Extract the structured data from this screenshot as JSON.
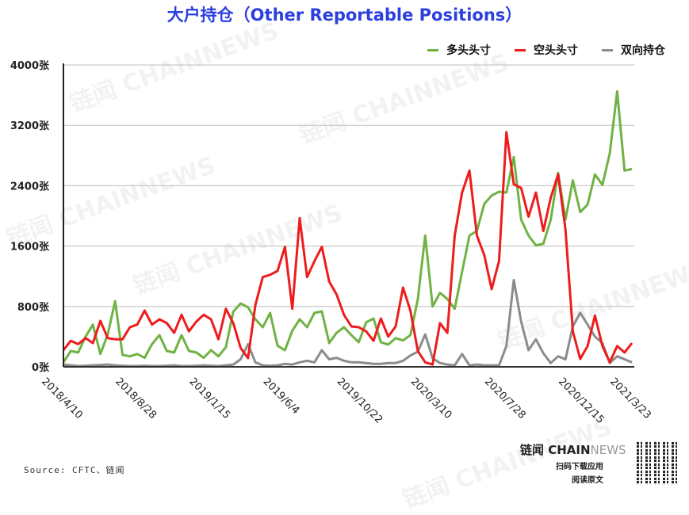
{
  "chart_data": {
    "type": "line",
    "title": "大户持仓（Other Reportable Positions）",
    "xlabel": "",
    "ylabel": "",
    "x_range": [
      "2018/4/10",
      "2021/3/23"
    ],
    "x_tick_labels": [
      "2018/4/10",
      "2018/8/28",
      "2019/1/15",
      "2019/6/4",
      "2019/10/22",
      "2020/3/10",
      "2020/7/28",
      "2020/12/15",
      "2021/3/23"
    ],
    "y_tick_labels": [
      "0张",
      "800张",
      "1600张",
      "2400张",
      "3200张",
      "4000张"
    ],
    "y_ticks": [
      0,
      800,
      1600,
      2400,
      3200,
      4000
    ],
    "ylim": [
      0,
      4000
    ],
    "grid": "horizontal",
    "legend_position": "top-right",
    "series": [
      {
        "name": "多头头寸",
        "color": "#70b244",
        "values": [
          60,
          210,
          190,
          400,
          560,
          170,
          430,
          870,
          160,
          140,
          170,
          120,
          300,
          420,
          210,
          190,
          420,
          210,
          190,
          120,
          220,
          140,
          260,
          730,
          840,
          790,
          630,
          525,
          715,
          280,
          220,
          480,
          630,
          525,
          715,
          735,
          315,
          450,
          525,
          420,
          325,
          590,
          640,
          325,
          295,
          380,
          350,
          420,
          900,
          1740,
          800,
          980,
          900,
          770,
          1260,
          1740,
          1800,
          2160,
          2270,
          2320,
          2310,
          2780,
          1950,
          1740,
          1610,
          1630,
          1950,
          2570,
          1950,
          2470,
          2050,
          2150,
          2550,
          2410,
          2830,
          3650,
          2600,
          2620
        ]
      },
      {
        "name": "空头头寸",
        "color": "#ee1c1c",
        "values": [
          220,
          345,
          300,
          380,
          315,
          610,
          380,
          365,
          365,
          525,
          560,
          745,
          560,
          630,
          580,
          450,
          690,
          470,
          600,
          690,
          630,
          365,
          770,
          580,
          250,
          115,
          820,
          1190,
          1220,
          1270,
          1590,
          770,
          1970,
          1190,
          1400,
          1590,
          1130,
          960,
          690,
          535,
          525,
          470,
          345,
          640,
          400,
          535,
          1050,
          745,
          210,
          60,
          30,
          580,
          450,
          1740,
          2310,
          2600,
          1740,
          1480,
          1030,
          1400,
          3110,
          2420,
          2370,
          1990,
          2310,
          1800,
          2240,
          2550,
          1820,
          470,
          105,
          275,
          680,
          275,
          60,
          275,
          190,
          315
        ]
      },
      {
        "name": "双向持仓",
        "color": "#8c8c8c",
        "values": [
          30,
          20,
          10,
          15,
          20,
          25,
          30,
          20,
          15,
          10,
          10,
          15,
          10,
          10,
          15,
          20,
          10,
          10,
          15,
          20,
          15,
          10,
          20,
          30,
          100,
          300,
          60,
          20,
          15,
          20,
          40,
          30,
          60,
          80,
          60,
          220,
          100,
          120,
          80,
          60,
          60,
          50,
          40,
          40,
          50,
          50,
          80,
          150,
          200,
          430,
          115,
          50,
          30,
          20,
          170,
          20,
          30,
          20,
          20,
          20,
          275,
          1150,
          600,
          220,
          365,
          180,
          50,
          140,
          100,
          535,
          715,
          560,
          400,
          315,
          50,
          140,
          100,
          60
        ]
      }
    ]
  },
  "footer": {
    "source": "Source: CFTC、链闻",
    "brand_main": "链闻 CHAIN",
    "brand_news": "NEWS",
    "brand_line1": "扫码下载应用",
    "brand_line2": "阅读原文"
  },
  "watermark": "链闻 CHAINNEWS"
}
